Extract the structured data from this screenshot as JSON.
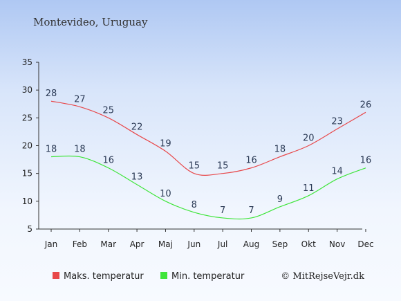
{
  "chart_data": {
    "type": "line",
    "title": "Montevideo, Uruguay",
    "categories": [
      "Jan",
      "Feb",
      "Mar",
      "Apr",
      "Maj",
      "Jun",
      "Jul",
      "Aug",
      "Sep",
      "Okt",
      "Nov",
      "Dec"
    ],
    "series": [
      {
        "name": "Maks. temperatur",
        "color": "#e8484a",
        "values": [
          28,
          27,
          25,
          22,
          19,
          15,
          15,
          16,
          18,
          20,
          23,
          26
        ]
      },
      {
        "name": "Min. temperatur",
        "color": "#3fe53a",
        "values": [
          18,
          18,
          16,
          13,
          10,
          8,
          7,
          7,
          9,
          11,
          14,
          16
        ]
      }
    ],
    "ylim": [
      5,
      35
    ],
    "yticks": [
      5,
      10,
      15,
      20,
      25,
      30,
      35
    ],
    "grid": false,
    "legend": "bottom",
    "credit": "© MitRejseVejr.dk"
  }
}
